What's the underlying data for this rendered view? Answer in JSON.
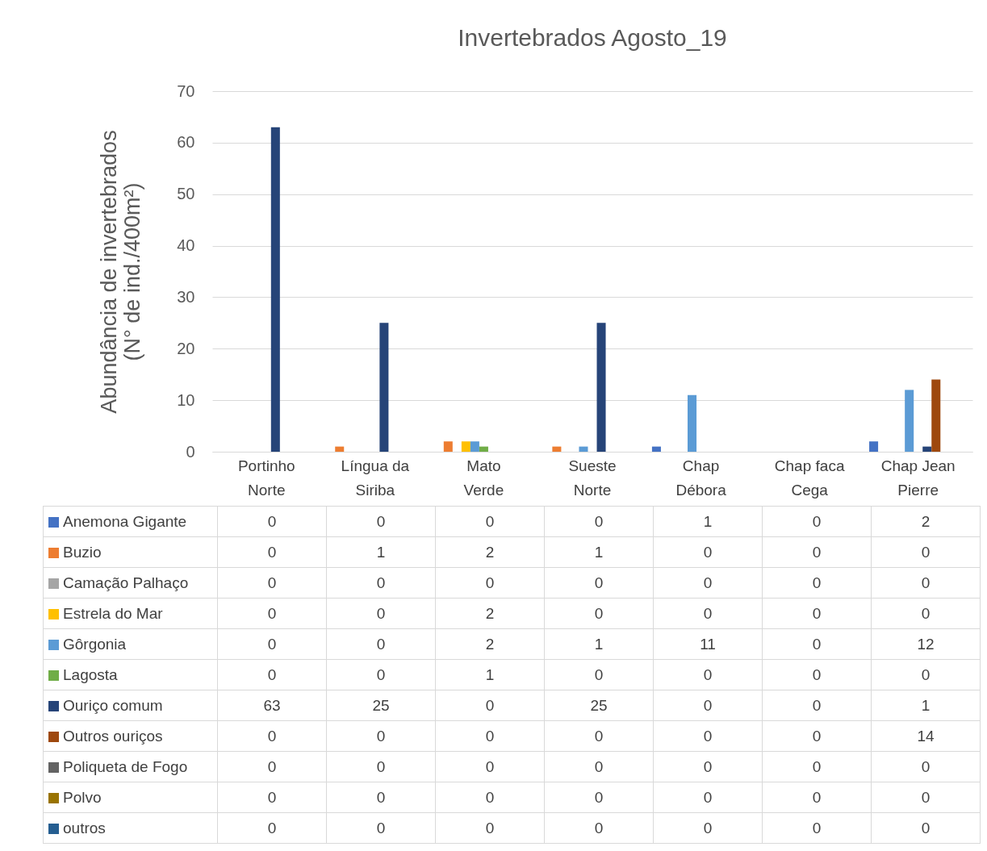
{
  "chart_data": {
    "type": "bar",
    "title": "Invertebrados Agosto_19",
    "ylabel": "Abundância de invertebrados\n(N° de ind./400m²)",
    "categories": [
      "Portinho Norte",
      "Língua da Siriba",
      "Mato Verde",
      "Sueste Norte",
      "Chap Débora",
      "Chap faca Cega",
      "Chap Jean Pierre"
    ],
    "series": [
      {
        "name": "Anemona Gigante",
        "color": "#4472c4",
        "values": [
          0,
          0,
          0,
          0,
          1,
          0,
          2
        ]
      },
      {
        "name": "Buzio",
        "color": "#ed7d31",
        "values": [
          0,
          1,
          2,
          1,
          0,
          0,
          0
        ]
      },
      {
        "name": "Camação Palhaço",
        "color": "#a5a5a5",
        "values": [
          0,
          0,
          0,
          0,
          0,
          0,
          0
        ]
      },
      {
        "name": "Estrela do Mar",
        "color": "#ffc000",
        "values": [
          0,
          0,
          2,
          0,
          0,
          0,
          0
        ]
      },
      {
        "name": "Gôrgonia",
        "color": "#5b9bd5",
        "values": [
          0,
          0,
          2,
          1,
          11,
          0,
          12
        ]
      },
      {
        "name": "Lagosta",
        "color": "#70ad47",
        "values": [
          0,
          0,
          1,
          0,
          0,
          0,
          0
        ]
      },
      {
        "name": "Ouriço comum",
        "color": "#264478",
        "values": [
          63,
          25,
          0,
          25,
          0,
          0,
          1
        ]
      },
      {
        "name": "Outros ouriços",
        "color": "#9e480e",
        "values": [
          0,
          0,
          0,
          0,
          0,
          0,
          14
        ]
      },
      {
        "name": "Poliqueta de Fogo",
        "color": "#636363",
        "values": [
          0,
          0,
          0,
          0,
          0,
          0,
          0
        ]
      },
      {
        "name": "Polvo",
        "color": "#997300",
        "values": [
          0,
          0,
          0,
          0,
          0,
          0,
          0
        ]
      },
      {
        "name": "outros",
        "color": "#255e91",
        "values": [
          0,
          0,
          0,
          0,
          0,
          0,
          0
        ]
      }
    ],
    "ylim": [
      0,
      70
    ],
    "yticks": [
      0,
      10,
      20,
      30,
      40,
      50,
      60,
      70
    ],
    "grid": "y",
    "legend": "bottom",
    "data_labels": true
  }
}
